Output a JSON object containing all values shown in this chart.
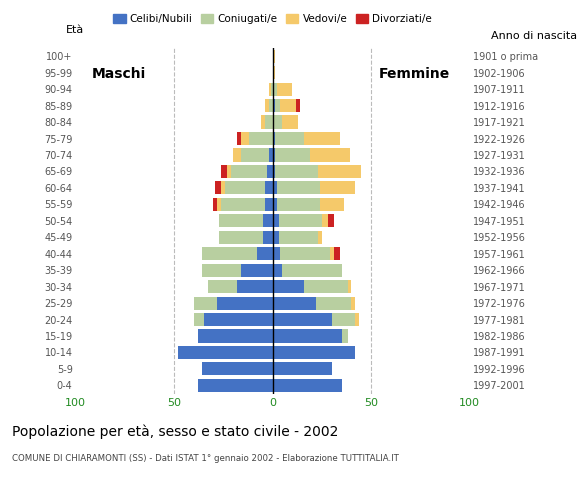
{
  "age_groups": [
    "0-4",
    "5-9",
    "10-14",
    "15-19",
    "20-24",
    "25-29",
    "30-34",
    "35-39",
    "40-44",
    "45-49",
    "50-54",
    "55-59",
    "60-64",
    "65-69",
    "70-74",
    "75-79",
    "80-84",
    "85-89",
    "90-94",
    "95-99",
    "100+"
  ],
  "birth_years": [
    "1997-2001",
    "1992-1996",
    "1987-1991",
    "1982-1986",
    "1977-1981",
    "1972-1976",
    "1967-1971",
    "1962-1966",
    "1957-1961",
    "1952-1956",
    "1947-1951",
    "1942-1946",
    "1937-1941",
    "1932-1936",
    "1927-1931",
    "1922-1926",
    "1917-1921",
    "1912-1916",
    "1907-1911",
    "1902-1906",
    "1901 o prima"
  ],
  "male": {
    "celibe": [
      38,
      36,
      48,
      38,
      35,
      28,
      18,
      16,
      8,
      5,
      5,
      4,
      4,
      3,
      2,
      0,
      0,
      0,
      0,
      0,
      0
    ],
    "coniugato": [
      0,
      0,
      0,
      0,
      5,
      12,
      15,
      20,
      28,
      22,
      22,
      22,
      20,
      18,
      14,
      12,
      4,
      2,
      1,
      0,
      0
    ],
    "vedovo": [
      0,
      0,
      0,
      0,
      0,
      0,
      0,
      0,
      0,
      0,
      0,
      2,
      2,
      2,
      4,
      4,
      2,
      2,
      1,
      0,
      0
    ],
    "divorziato": [
      0,
      0,
      0,
      0,
      0,
      0,
      0,
      0,
      0,
      0,
      0,
      2,
      3,
      3,
      0,
      2,
      0,
      0,
      0,
      0,
      0
    ]
  },
  "female": {
    "nubile": [
      35,
      30,
      42,
      35,
      30,
      22,
      16,
      5,
      4,
      3,
      3,
      2,
      2,
      1,
      1,
      1,
      0,
      1,
      0,
      0,
      0
    ],
    "coniugata": [
      0,
      0,
      0,
      3,
      12,
      18,
      22,
      30,
      25,
      20,
      22,
      22,
      22,
      22,
      18,
      15,
      5,
      3,
      2,
      0,
      0
    ],
    "vedova": [
      0,
      0,
      0,
      0,
      2,
      2,
      2,
      0,
      2,
      2,
      3,
      12,
      18,
      22,
      20,
      18,
      8,
      8,
      8,
      1,
      1
    ],
    "divorziata": [
      0,
      0,
      0,
      0,
      0,
      0,
      0,
      0,
      3,
      0,
      3,
      0,
      0,
      0,
      0,
      0,
      0,
      2,
      0,
      0,
      0
    ]
  },
  "colors": {
    "celibe": "#4472c4",
    "coniugato": "#b8cfa0",
    "vedovo": "#f5c96a",
    "divorziato": "#cc2222"
  },
  "xlim": 100,
  "title": "Popolazione per età, sesso e stato civile - 2002",
  "subtitle": "COMUNE DI CHIARAMONTI (SS) - Dati ISTAT 1° gennaio 2002 - Elaborazione TUTTITALIA.IT",
  "ylabel_left": "Età",
  "ylabel_right": "Anno di nascita",
  "label_maschi": "Maschi",
  "label_femmine": "Femmine",
  "legend_labels": [
    "Celibi/Nubili",
    "Coniugati/e",
    "Vedovi/e",
    "Divorziati/e"
  ]
}
